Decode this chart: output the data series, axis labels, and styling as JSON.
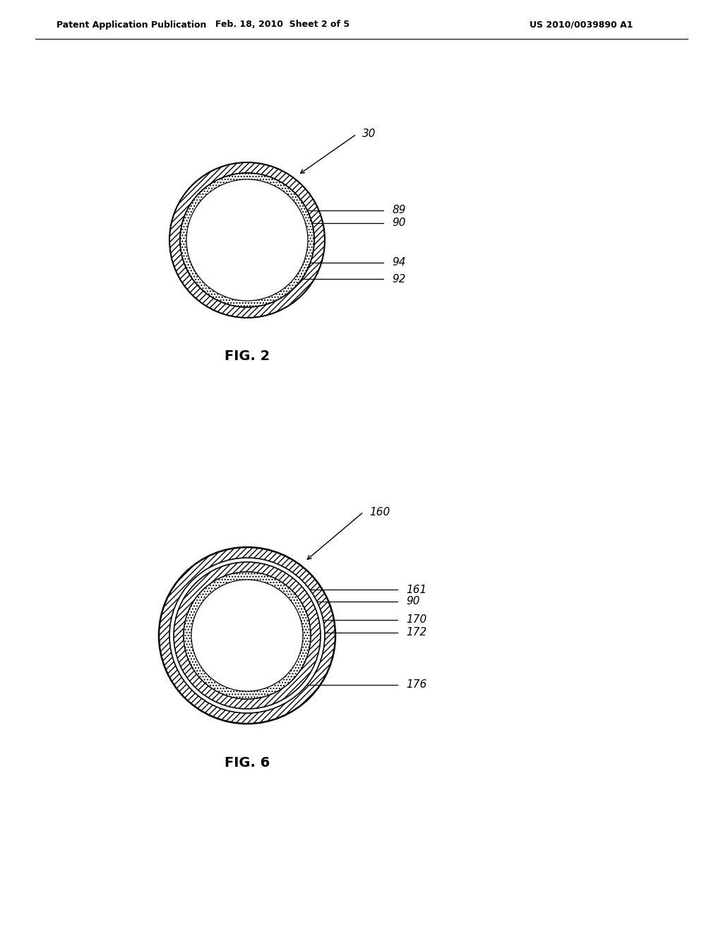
{
  "header_left": "Patent Application Publication",
  "header_mid": "Feb. 18, 2010  Sheet 2 of 5",
  "header_right": "US 2010/0039890 A1",
  "fig2_label": "FIG. 2",
  "fig6_label": "FIG. 6",
  "background_color": "#ffffff"
}
